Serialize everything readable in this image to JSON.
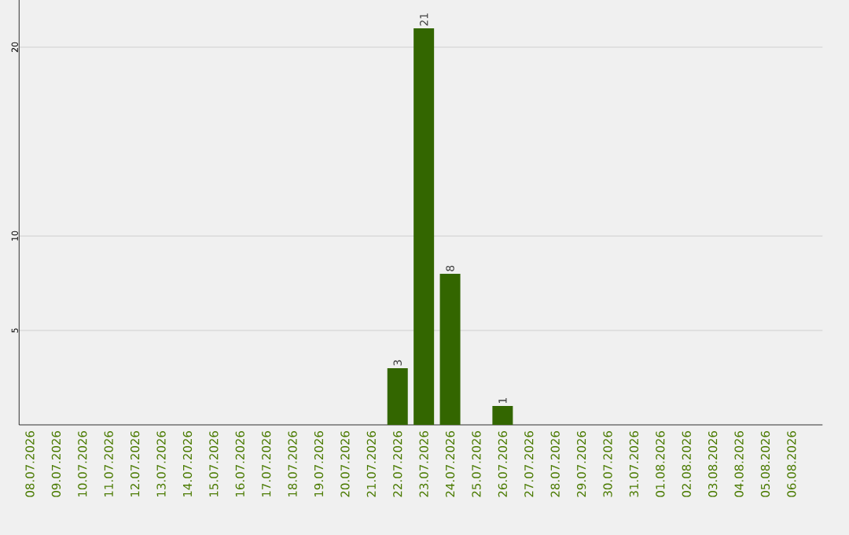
{
  "chart_data": {
    "type": "bar",
    "categories": [
      "08.07.2026",
      "09.07.2026",
      "10.07.2026",
      "11.07.2026",
      "12.07.2026",
      "13.07.2026",
      "14.07.2026",
      "15.07.2026",
      "16.07.2026",
      "17.07.2026",
      "18.07.2026",
      "19.07.2026",
      "20.07.2026",
      "21.07.2026",
      "22.07.2026",
      "23.07.2026",
      "24.07.2026",
      "25.07.2026",
      "26.07.2026",
      "27.07.2026",
      "28.07.2026",
      "29.07.2026",
      "30.07.2026",
      "31.07.2026",
      "01.08.2026",
      "02.08.2026",
      "03.08.2026",
      "04.08.2026",
      "05.08.2026",
      "06.08.2026"
    ],
    "values": [
      0,
      0,
      0,
      0,
      0,
      0,
      0,
      0,
      0,
      0,
      0,
      0,
      0,
      0,
      3,
      21,
      8,
      0,
      1,
      0,
      0,
      0,
      0,
      0,
      0,
      0,
      0,
      0,
      0,
      0
    ],
    "value_labels": [
      null,
      null,
      null,
      null,
      null,
      null,
      null,
      null,
      null,
      null,
      null,
      null,
      null,
      null,
      "3",
      "21",
      "8",
      null,
      "1",
      null,
      null,
      null,
      null,
      null,
      null,
      null,
      null,
      null,
      null,
      null
    ],
    "color": "#336600",
    "ylim": [
      0,
      22.5
    ],
    "yticks": [
      5,
      10,
      20
    ],
    "grid": "y"
  }
}
